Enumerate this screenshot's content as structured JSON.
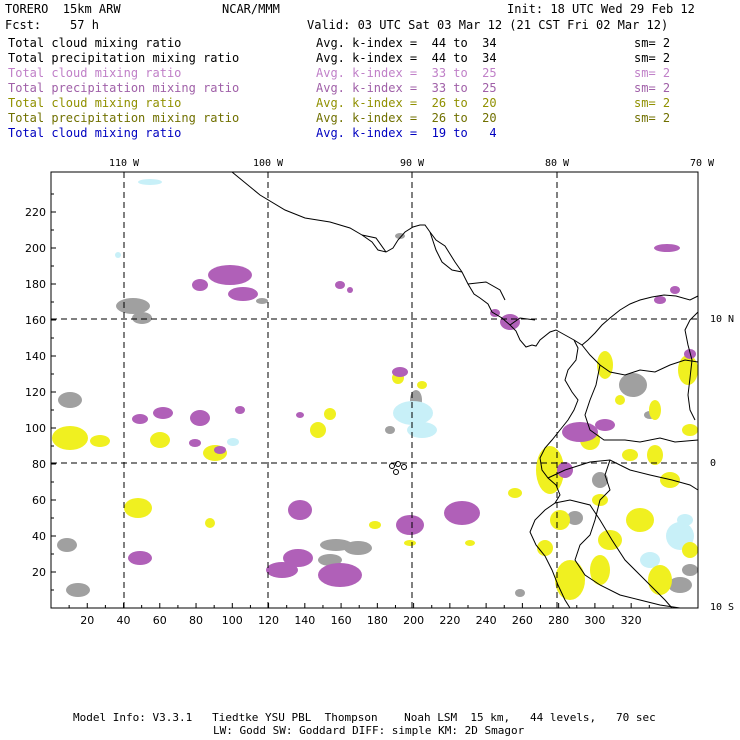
{
  "header": {
    "model": "TORERO  15km ARW",
    "org": "NCAR/MMM",
    "init": "Init: 18 UTC Wed 29 Feb 12",
    "fcst": "Fcst:    57 h",
    "valid": "Valid: 03 UTC Sat 03 Mar 12 (21 CST Fri 02 Mar 12)"
  },
  "legend": [
    {
      "name": "Total cloud mixing ratio",
      "kidx": "Avg. k-index =  44 to  34",
      "sm": "sm= 2",
      "color": "#000000"
    },
    {
      "name": "Total precipitation mixing ratio",
      "kidx": "Avg. k-index =  44 to  34",
      "sm": "sm= 2",
      "color": "#000000"
    },
    {
      "name": "Total cloud mixing ratio",
      "kidx": "Avg. k-index =  33 to  25",
      "sm": "sm= 2",
      "color": "#c080c8"
    },
    {
      "name": "Total precipitation mixing ratio",
      "kidx": "Avg. k-index =  33 to  25",
      "sm": "sm= 2",
      "color": "#a060a8"
    },
    {
      "name": "Total cloud mixing ratio",
      "kidx": "Avg. k-index =  26 to  20",
      "sm": "sm= 2",
      "color": "#909000"
    },
    {
      "name": "Total precipitation mixing ratio",
      "kidx": "Avg. k-index =  26 to  20",
      "sm": "sm= 2",
      "color": "#707000"
    },
    {
      "name": "Total cloud mixing ratio",
      "kidx": "Avg. k-index =  19 to   4",
      "sm": "",
      "color": "#0000c0"
    }
  ],
  "map": {
    "lon_labels": [
      "110 W",
      "100 W",
      "90 W",
      "80 W",
      "70 W"
    ],
    "lat_labels": [
      "10 N",
      "0",
      "10 S"
    ],
    "x_ticks": [
      "20",
      "40",
      "60",
      "80",
      "100",
      "120",
      "140",
      "160",
      "180",
      "200",
      "220",
      "240",
      "260",
      "280",
      "300",
      "320"
    ],
    "y_ticks": [
      "220",
      "200",
      "180",
      "160",
      "140",
      "120",
      "100",
      "80",
      "60",
      "40",
      "20"
    ],
    "colors": {
      "purple": "#b060b8",
      "yellow": "#f0f020",
      "gray": "#a0a0a0",
      "lightblue": "#c8f0f8"
    }
  },
  "footer": {
    "line1": "Model Info: V3.3.1   Tiedtke YSU PBL  Thompson    Noah LSM  15 km,   44 levels,   70 sec",
    "line2": "LW: Godd SW: Goddard DIFF: simple KM: 2D Smagor"
  }
}
